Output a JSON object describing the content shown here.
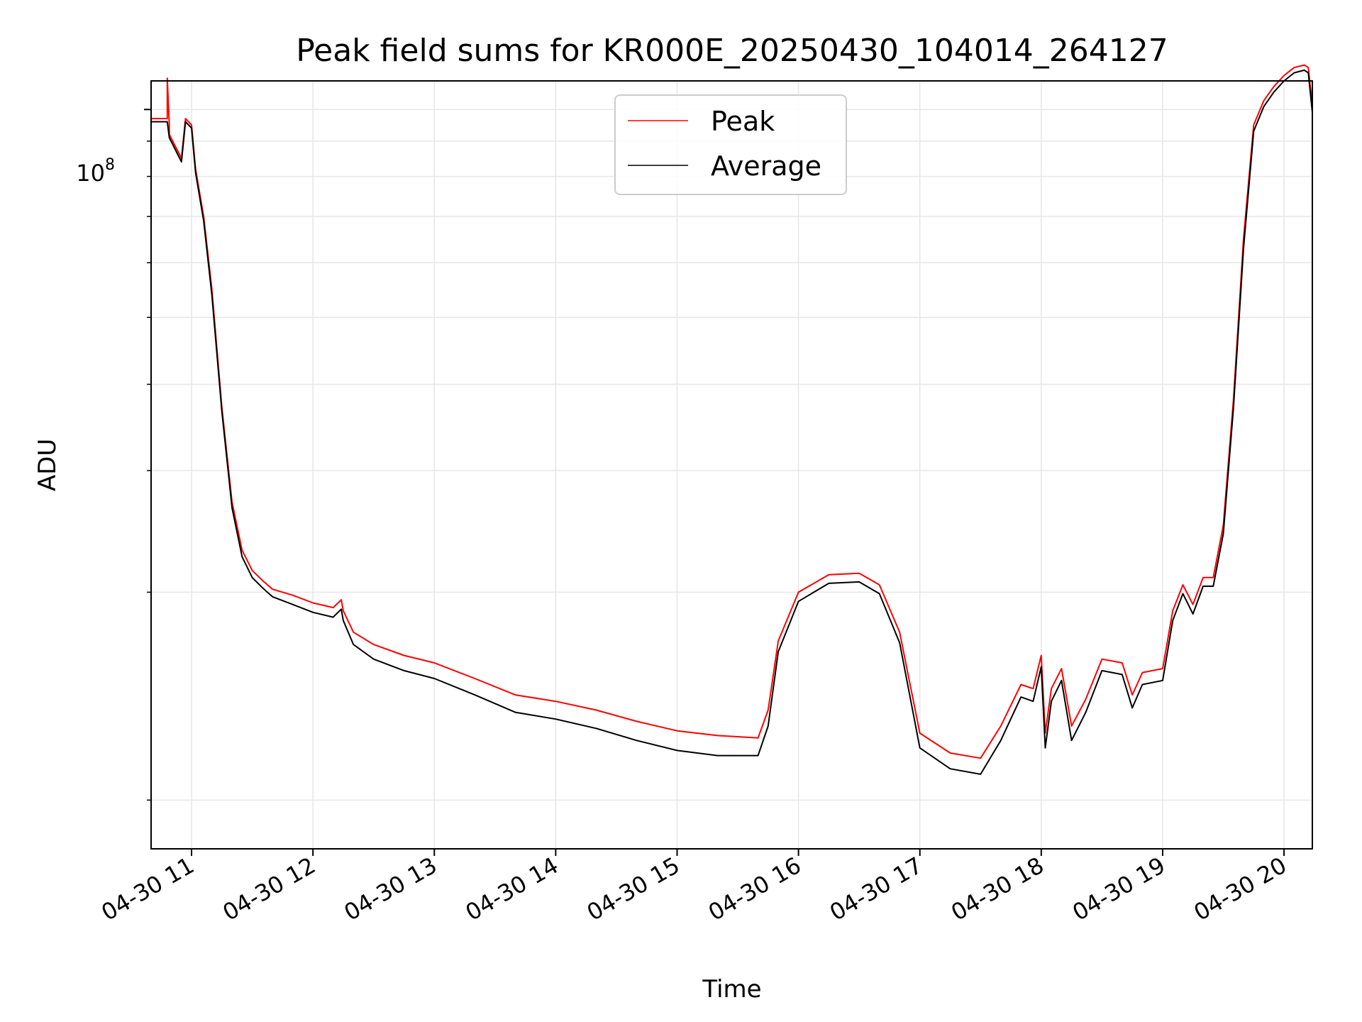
{
  "chart_data": {
    "type": "line",
    "title": "Peak field sums for KR000E_20250430_104014_264127",
    "xlabel": "Time",
    "ylabel": "ADU",
    "y_scale": "log",
    "y_tick_label": "10^8",
    "y_tick_base": "10",
    "y_tick_exp": "8",
    "xlim": [
      "2025-04-30 10:40",
      "2025-04-30 20:14"
    ],
    "ylim": [
      8500000,
      110000000
    ],
    "x_tick_labels": [
      "04-30 11",
      "04-30 12",
      "04-30 13",
      "04-30 14",
      "04-30 15",
      "04-30 16",
      "04-30 17",
      "04-30 18",
      "04-30 19",
      "04-30 20"
    ],
    "grid": true,
    "legend_position": "top-center",
    "series": [
      {
        "name": "Peak",
        "color": "#ff0000",
        "x": [
          "10:40",
          "10:48",
          "10:48",
          "10:49",
          "10:49",
          "10:55",
          "10:57",
          "11:00",
          "11:02",
          "11:06",
          "11:10",
          "11:15",
          "11:20",
          "11:25",
          "11:30",
          "11:35",
          "11:40",
          "11:50",
          "12:00",
          "12:10",
          "12:14",
          "12:15",
          "12:20",
          "12:30",
          "12:45",
          "13:00",
          "13:20",
          "13:40",
          "14:00",
          "14:20",
          "14:40",
          "15:00",
          "15:20",
          "15:40",
          "15:45",
          "15:50",
          "16:00",
          "16:15",
          "16:30",
          "16:40",
          "16:50",
          "17:00",
          "17:15",
          "17:30",
          "17:40",
          "17:50",
          "17:56",
          "18:00",
          "18:02",
          "18:05",
          "18:10",
          "18:15",
          "18:22",
          "18:30",
          "18:40",
          "18:45",
          "18:50",
          "19:00",
          "19:05",
          "19:10",
          "19:15",
          "19:20",
          "19:25",
          "19:30",
          "19:35",
          "19:40",
          "19:45",
          "19:50",
          "19:55",
          "20:00",
          "20:05",
          "20:10",
          "20:12",
          "20:14"
        ],
        "y": [
          97000000,
          97000000,
          111000000,
          95000000,
          92000000,
          85000000,
          97000000,
          95000000,
          82000000,
          70000000,
          55000000,
          37000000,
          27000000,
          23000000,
          21500000,
          20800000,
          20200000,
          19800000,
          19300000,
          19000000,
          19500000,
          18800000,
          17500000,
          16800000,
          16200000,
          15800000,
          15000000,
          14200000,
          13900000,
          13500000,
          13000000,
          12600000,
          12400000,
          12300000,
          13500000,
          17000000,
          20000000,
          21200000,
          21300000,
          20500000,
          17500000,
          12500000,
          11700000,
          11500000,
          12800000,
          14700000,
          14500000,
          16200000,
          12500000,
          14500000,
          15500000,
          12800000,
          14000000,
          16000000,
          15800000,
          14200000,
          15300000,
          15500000,
          18800000,
          20500000,
          19200000,
          21000000,
          21000000,
          25000000,
          38000000,
          65000000,
          95000000,
          103000000,
          108000000,
          112000000,
          115000000,
          116000000,
          115000000,
          101000000
        ]
      },
      {
        "name": "Average",
        "color": "#000000",
        "x": [
          "10:40",
          "10:48",
          "10:49",
          "10:55",
          "10:57",
          "11:00",
          "11:02",
          "11:06",
          "11:10",
          "11:15",
          "11:20",
          "11:25",
          "11:30",
          "11:35",
          "11:40",
          "11:50",
          "12:00",
          "12:10",
          "12:14",
          "12:15",
          "12:20",
          "12:30",
          "12:45",
          "13:00",
          "13:20",
          "13:40",
          "14:00",
          "14:20",
          "14:40",
          "15:00",
          "15:20",
          "15:40",
          "15:45",
          "15:50",
          "16:00",
          "16:15",
          "16:30",
          "16:40",
          "16:50",
          "17:00",
          "17:15",
          "17:30",
          "17:40",
          "17:50",
          "17:56",
          "18:00",
          "18:02",
          "18:05",
          "18:10",
          "18:15",
          "18:22",
          "18:30",
          "18:40",
          "18:45",
          "18:50",
          "19:00",
          "19:05",
          "19:10",
          "19:15",
          "19:20",
          "19:25",
          "19:30",
          "19:35",
          "19:40",
          "19:45",
          "19:50",
          "19:55",
          "20:00",
          "20:05",
          "20:10",
          "20:12",
          "20:14"
        ],
        "y": [
          96000000,
          96000000,
          91000000,
          84000000,
          96000000,
          94000000,
          81000000,
          69000000,
          54000000,
          36500000,
          26500000,
          22500000,
          21000000,
          20300000,
          19700000,
          19200000,
          18700000,
          18400000,
          18900000,
          18200000,
          16800000,
          16000000,
          15400000,
          15000000,
          14200000,
          13400000,
          13100000,
          12700000,
          12200000,
          11800000,
          11600000,
          11600000,
          12800000,
          16400000,
          19400000,
          20600000,
          20700000,
          19900000,
          16900000,
          11900000,
          11100000,
          10900000,
          12200000,
          14100000,
          13900000,
          15600000,
          11900000,
          13900000,
          14900000,
          12200000,
          13400000,
          15400000,
          15200000,
          13600000,
          14700000,
          14900000,
          18200000,
          19900000,
          18600000,
          20400000,
          20400000,
          24300000,
          37000000,
          63000000,
          93000000,
          101000000,
          106000000,
          110000000,
          113000000,
          114000000,
          113000000,
          99000000
        ]
      }
    ]
  }
}
